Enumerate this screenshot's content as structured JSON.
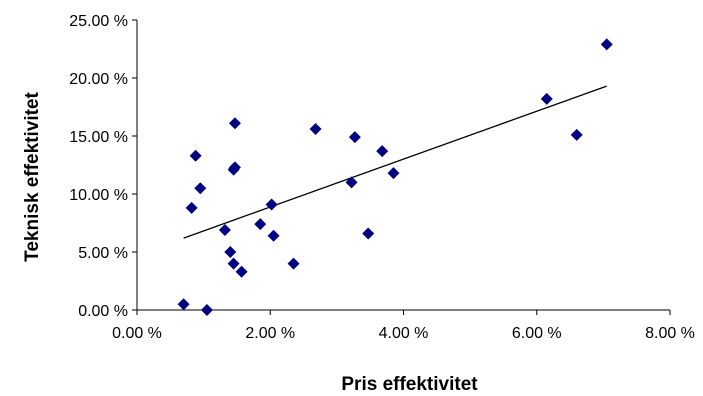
{
  "chart_data": {
    "type": "scatter",
    "xlabel": "Pris effektivitet",
    "ylabel": "Teknisk effektivitet",
    "xlim": [
      0,
      8
    ],
    "ylim": [
      0,
      25
    ],
    "xticks": [
      0,
      2,
      4,
      6,
      8
    ],
    "yticks": [
      0,
      5,
      10,
      15,
      20,
      25
    ],
    "x_tick_labels": [
      "0.00 %",
      "2.00 %",
      "4.00 %",
      "6.00 %",
      "8.00 %"
    ],
    "y_tick_labels": [
      "0.00 %",
      "5.00 %",
      "10.00 %",
      "15.00 %",
      "20.00 %",
      "25.00 %"
    ],
    "grid": false,
    "marker_color": "#000080",
    "trendline": {
      "from": [
        0.7,
        6.2
      ],
      "to": [
        7.05,
        19.3
      ],
      "color": "#000000"
    },
    "points": [
      {
        "x": 0.7,
        "y": 0.5
      },
      {
        "x": 1.05,
        "y": 0.0
      },
      {
        "x": 0.82,
        "y": 8.8
      },
      {
        "x": 0.88,
        "y": 13.3
      },
      {
        "x": 0.95,
        "y": 10.5
      },
      {
        "x": 1.32,
        "y": 6.9
      },
      {
        "x": 1.4,
        "y": 5.0
      },
      {
        "x": 1.45,
        "y": 4.0
      },
      {
        "x": 1.45,
        "y": 12.1
      },
      {
        "x": 1.47,
        "y": 12.3
      },
      {
        "x": 1.47,
        "y": 16.1
      },
      {
        "x": 1.57,
        "y": 3.3
      },
      {
        "x": 1.85,
        "y": 7.4
      },
      {
        "x": 2.02,
        "y": 9.1
      },
      {
        "x": 2.05,
        "y": 6.4
      },
      {
        "x": 2.35,
        "y": 4.0
      },
      {
        "x": 2.68,
        "y": 15.6
      },
      {
        "x": 3.22,
        "y": 11.0
      },
      {
        "x": 3.27,
        "y": 14.9
      },
      {
        "x": 3.47,
        "y": 6.6
      },
      {
        "x": 3.68,
        "y": 13.7
      },
      {
        "x": 3.85,
        "y": 11.8
      },
      {
        "x": 6.15,
        "y": 18.2
      },
      {
        "x": 6.6,
        "y": 15.1
      },
      {
        "x": 7.05,
        "y": 22.9
      }
    ]
  }
}
